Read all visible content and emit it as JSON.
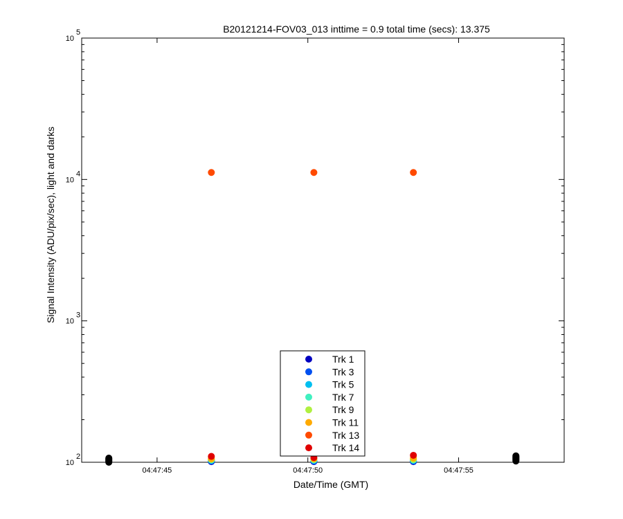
{
  "chart_data": {
    "type": "scatter",
    "title": "B20121214-FOV03_013 inttime = 0.9 total time (secs): 13.375",
    "xlabel": "Date/Time (GMT)",
    "ylabel": "Signal Intensity (ADU/pix/sec), light and darks",
    "y_scale": "log",
    "ylim": [
      100,
      100000
    ],
    "xlim": [
      "04:47:42.5",
      "04:47:58.5"
    ],
    "x_ticks": [
      "04:47:45",
      "04:47:50",
      "04:47:55"
    ],
    "y_ticks": [
      {
        "value": 100,
        "base": "10",
        "exp": "2"
      },
      {
        "value": 1000,
        "base": "10",
        "exp": "3"
      },
      {
        "value": 10000,
        "base": "10",
        "exp": "4"
      },
      {
        "value": 100000,
        "base": "10",
        "exp": "5"
      }
    ],
    "grid": false,
    "legend_position": "bottom-center",
    "series": [
      {
        "name": "Trk 1",
        "color": "#0000c0",
        "points": [
          {
            "x": "04:47:46.8",
            "y": 101
          },
          {
            "x": "04:47:50.2",
            "y": 101
          },
          {
            "x": "04:47:53.5",
            "y": 101
          }
        ]
      },
      {
        "name": "Trk 3",
        "color": "#0050f0",
        "points": [
          {
            "x": "04:47:46.8",
            "y": 102
          },
          {
            "x": "04:47:50.2",
            "y": 102
          },
          {
            "x": "04:47:53.5",
            "y": 102
          }
        ]
      },
      {
        "name": "Trk 5",
        "color": "#00bff0",
        "points": [
          {
            "x": "04:47:46.8",
            "y": 103
          },
          {
            "x": "04:47:50.2",
            "y": 103
          },
          {
            "x": "04:47:53.5",
            "y": 103
          }
        ]
      },
      {
        "name": "Trk 7",
        "color": "#40f0c0",
        "points": [
          {
            "x": "04:47:46.8",
            "y": 104
          },
          {
            "x": "04:47:50.2",
            "y": 104
          },
          {
            "x": "04:47:53.5",
            "y": 104
          }
        ]
      },
      {
        "name": "Trk 9",
        "color": "#b0f040",
        "points": [
          {
            "x": "04:47:46.8",
            "y": 105
          },
          {
            "x": "04:47:50.2",
            "y": 105
          },
          {
            "x": "04:47:53.5",
            "y": 105
          }
        ]
      },
      {
        "name": "Trk 11",
        "color": "#ffaa00",
        "points": [
          {
            "x": "04:47:46.8",
            "y": 106
          },
          {
            "x": "04:47:50.2",
            "y": 106
          },
          {
            "x": "04:47:53.5",
            "y": 107
          }
        ]
      },
      {
        "name": "Trk 13",
        "color": "#ff4a00",
        "points": [
          {
            "x": "04:47:46.8",
            "y": 11200
          },
          {
            "x": "04:47:50.2",
            "y": 11200
          },
          {
            "x": "04:47:53.5",
            "y": 11200
          }
        ]
      },
      {
        "name": "Trk 14",
        "color": "#e00000",
        "points": [
          {
            "x": "04:47:46.8",
            "y": 110
          },
          {
            "x": "04:47:50.2",
            "y": 108
          },
          {
            "x": "04:47:53.5",
            "y": 112
          }
        ]
      }
    ],
    "darks": {
      "color": "#000000",
      "points": [
        {
          "x": "04:47:43.4",
          "y": 100
        },
        {
          "x": "04:47:43.4",
          "y": 101
        },
        {
          "x": "04:47:43.4",
          "y": 102
        },
        {
          "x": "04:47:43.4",
          "y": 103
        },
        {
          "x": "04:47:43.4",
          "y": 104
        },
        {
          "x": "04:47:43.4",
          "y": 105
        },
        {
          "x": "04:47:43.4",
          "y": 106
        },
        {
          "x": "04:47:43.4",
          "y": 107
        },
        {
          "x": "04:47:56.9",
          "y": 102
        },
        {
          "x": "04:47:56.9",
          "y": 103
        },
        {
          "x": "04:47:56.9",
          "y": 104
        },
        {
          "x": "04:47:56.9",
          "y": 105
        },
        {
          "x": "04:47:56.9",
          "y": 106
        },
        {
          "x": "04:47:56.9",
          "y": 107
        },
        {
          "x": "04:47:56.9",
          "y": 108
        },
        {
          "x": "04:47:56.9",
          "y": 109
        },
        {
          "x": "04:47:56.9",
          "y": 110
        },
        {
          "x": "04:47:56.9",
          "y": 111
        }
      ]
    }
  }
}
